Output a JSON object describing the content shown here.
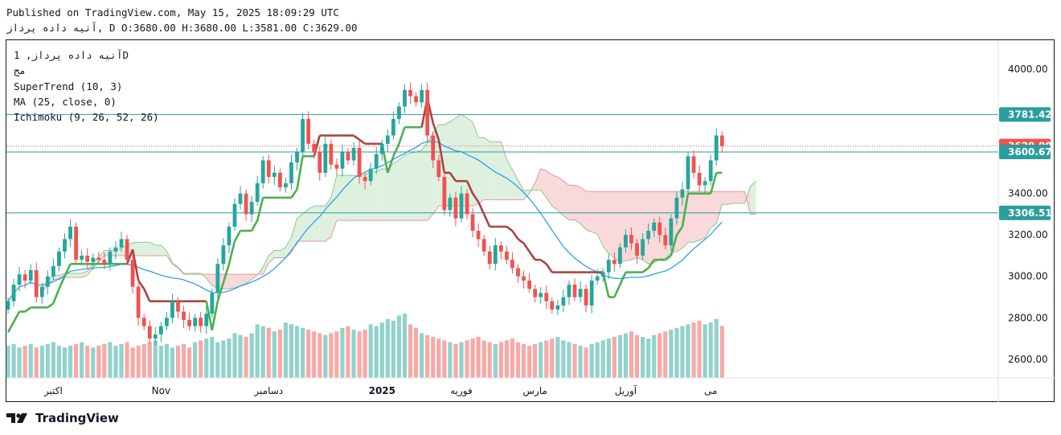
{
  "header": {
    "published": "Published on TradingView.com, May 15, 2025 18:09:29 UTC",
    "ohlc_line": "آتیه داده پرداز, D O:3680.00 H:3680.00 L:3581.00 C:3629.00"
  },
  "legend": {
    "symbol": "آتیه داده پرداز, 1D",
    "unit": "مج",
    "supertrend": "SuperTrend (10, 3)",
    "ma": "MA (25, close, 0)",
    "ichimoku": "Ichimoku (9, 26, 52, 26)"
  },
  "footer": {
    "brand": "TradingView",
    "logo_icon": "tradingview-logo-icon"
  },
  "colors": {
    "up": "#26a69a",
    "down": "#ef5350",
    "supertrend_up": "#4caf50",
    "supertrend_down": "#a94442",
    "ma": "#2196f3",
    "cloud_bear": "#f8d0d0",
    "cloud_bull": "#d6ecd6",
    "hline": "#2a9d9e"
  },
  "chart_data": {
    "type": "candlestick",
    "x_labels": [
      {
        "i": 8,
        "label": "اکتبر"
      },
      {
        "i": 27,
        "label": "Nov"
      },
      {
        "i": 46,
        "label": "دسامبر"
      },
      {
        "i": 66,
        "label": "2025"
      },
      {
        "i": 80,
        "label": "فوریه"
      },
      {
        "i": 93,
        "label": "مارس"
      },
      {
        "i": 109,
        "label": "آوریل"
      },
      {
        "i": 124,
        "label": "می"
      }
    ],
    "y_ticks": [
      2600,
      2800,
      3000,
      3200,
      3400,
      4000
    ],
    "ylim": [
      2510,
      4140
    ],
    "horizontal_lines": [
      3781.42,
      3600.67,
      3306.51
    ],
    "price_badges": [
      {
        "value": 3781.42,
        "label": "3781.42",
        "color": "#2a9d9e"
      },
      {
        "value": 3629.0,
        "label": "3629.00",
        "color": "#ef5350"
      },
      {
        "value": 3600.67,
        "label": "3600.67",
        "color": "#2a9d9e"
      },
      {
        "value": 3306.51,
        "label": "3306.51",
        "color": "#2a9d9e"
      }
    ],
    "last_close": 3629.0,
    "closes": [
      2880,
      2960,
      3010,
      2980,
      3030,
      2900,
      2950,
      3000,
      3050,
      3120,
      3180,
      3240,
      3080,
      3100,
      3070,
      3090,
      3080,
      3060,
      3120,
      3140,
      3180,
      3080,
      2950,
      2800,
      2760,
      2700,
      2720,
      2760,
      2800,
      2880,
      2830,
      2790,
      2760,
      2800,
      2760,
      2820,
      2920,
      3060,
      3150,
      3240,
      3350,
      3400,
      3300,
      3360,
      3450,
      3560,
      3480,
      3500,
      3430,
      3450,
      3550,
      3600,
      3760,
      3640,
      3600,
      3500,
      3640,
      3540,
      3520,
      3600,
      3560,
      3620,
      3480,
      3460,
      3520,
      3590,
      3640,
      3680,
      3760,
      3820,
      3900,
      3870,
      3840,
      3900,
      3680,
      3560,
      3480,
      3320,
      3380,
      3280,
      3400,
      3300,
      3220,
      3180,
      3120,
      3060,
      3150,
      3120,
      3080,
      3040,
      3000,
      2980,
      2940,
      2900,
      2920,
      2880,
      2840,
      2860,
      2900,
      2960,
      2900,
      2940,
      2860,
      2980,
      3000,
      3020,
      3080,
      3060,
      3140,
      3200,
      3160,
      3100,
      3180,
      3220,
      3260,
      3200,
      3150,
      3280,
      3380,
      3420,
      3580,
      3500,
      3440,
      3460,
      3560,
      3680,
      3629
    ],
    "volumes": [
      36,
      38,
      34,
      36,
      38,
      34,
      36,
      38,
      40,
      36,
      34,
      36,
      38,
      40,
      36,
      34,
      36,
      38,
      40,
      36,
      38,
      40,
      34,
      36,
      38,
      40,
      42,
      36,
      38,
      34,
      36,
      38,
      34,
      40,
      42,
      44,
      46,
      40,
      42,
      44,
      50,
      48,
      46,
      50,
      60,
      58,
      56,
      52,
      54,
      62,
      60,
      58,
      56,
      54,
      52,
      50,
      48,
      50,
      52,
      56,
      58,
      54,
      52,
      54,
      60,
      58,
      62,
      66,
      64,
      70,
      72,
      60,
      56,
      50,
      48,
      46,
      44,
      42,
      40,
      38,
      40,
      42,
      44,
      46,
      42,
      40,
      38,
      40,
      42,
      44,
      40,
      38,
      36,
      38,
      40,
      42,
      44,
      46,
      42,
      40,
      38,
      36,
      34,
      38,
      40,
      42,
      44,
      46,
      48,
      50,
      52,
      48,
      46,
      44,
      48,
      50,
      52,
      54,
      56,
      58,
      60,
      62,
      64,
      60,
      62,
      66,
      58
    ]
  }
}
